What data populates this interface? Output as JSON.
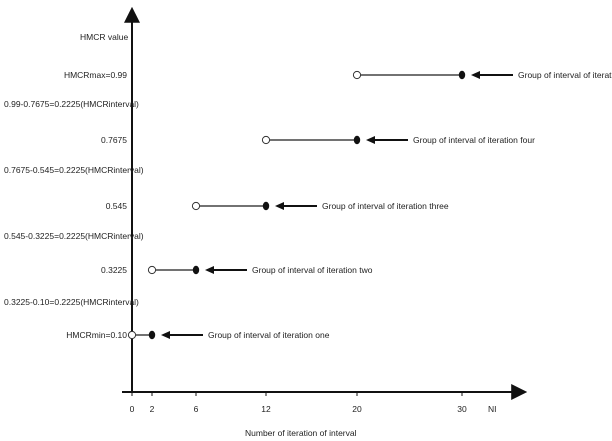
{
  "y_axis_title": "HMCR value",
  "x_axis_title": "Number of iteration of interval",
  "x_axis_end_label": "NI",
  "x_ticks": [
    "0",
    "2",
    "6",
    "12",
    "20",
    "30"
  ],
  "levels": [
    "HMCRmax=0.99",
    "0.7675",
    "0.545",
    "0.3225",
    "HMCRmin=0.10"
  ],
  "interval_labels": [
    "0.99-0.7675=0.2225(HMCRinterval)",
    "0.7675-0.545=0.2225(HMCRinterval)",
    "0.545-0.3225=0.2225(HMCRinterval)",
    "0.3225-0.10=0.2225(HMCRinterval)"
  ],
  "groups": [
    {
      "label": "Group of interval of iteration one",
      "level": "HMCRmin=0.10",
      "start": 0,
      "end": 2
    },
    {
      "label": "Group of interval of iteration two",
      "level": "0.3225",
      "start": 2,
      "end": 6
    },
    {
      "label": "Group of interval of iteration three",
      "level": "0.545",
      "start": 6,
      "end": 12
    },
    {
      "label": "Group of interval of iteration four",
      "level": "0.7675",
      "start": 12,
      "end": 20
    },
    {
      "label": "Group of interval of iteration five",
      "level": "HMCRmax=0.99",
      "start": 20,
      "end": 30
    }
  ]
}
